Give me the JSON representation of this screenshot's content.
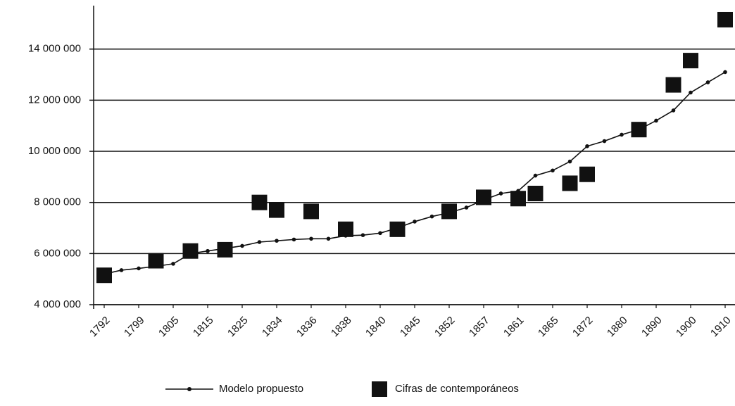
{
  "chart_data": {
    "type": "line",
    "categories": [
      "1792",
      null,
      "1799",
      null,
      "1805",
      null,
      "1815",
      null,
      "1825",
      null,
      "1834",
      null,
      "1836",
      null,
      "1838",
      null,
      "1840",
      null,
      "1845",
      null,
      "1852",
      null,
      "1857",
      null,
      "1861",
      null,
      "1865",
      null,
      "1872",
      null,
      "1880",
      null,
      "1890",
      null,
      "1900",
      null,
      "1910"
    ],
    "series": [
      {
        "name": "Modelo propuesto",
        "color": "#111111",
        "marker": "circle",
        "values": [
          5200000,
          5350000,
          5420000,
          5500000,
          5600000,
          6000000,
          6100000,
          6200000,
          6300000,
          6450000,
          6500000,
          6550000,
          6580000,
          6580000,
          6700000,
          6720000,
          6800000,
          7000000,
          7250000,
          7450000,
          7600000,
          7800000,
          8100000,
          8350000,
          8450000,
          9050000,
          9250000,
          9600000,
          10200000,
          10400000,
          10650000,
          10850000,
          11200000,
          11600000,
          12300000,
          12700000,
          13100000
        ]
      },
      {
        "name": "Cifras de contemporáneos",
        "color": "#111111",
        "marker": "square",
        "values": [
          5150000,
          null,
          null,
          5720000,
          null,
          6100000,
          null,
          6150000,
          null,
          8000000,
          7700000,
          null,
          7650000,
          null,
          6950000,
          null,
          null,
          6950000,
          null,
          null,
          7650000,
          null,
          8200000,
          null,
          8150000,
          8350000,
          null,
          8750000,
          9100000,
          null,
          null,
          10850000,
          null,
          12600000,
          13550000,
          null,
          15150000
        ]
      }
    ],
    "ylim": [
      4000000,
      15700000
    ],
    "yticks": [
      {
        "value": 4000000,
        "label": "4 000 000"
      },
      {
        "value": 6000000,
        "label": "6 000 000"
      },
      {
        "value": 8000000,
        "label": "8 000 000"
      },
      {
        "value": 10000000,
        "label": "10 000 000"
      },
      {
        "value": 12000000,
        "label": "12 000 000"
      },
      {
        "value": 14000000,
        "label": "14 000 000"
      }
    ],
    "grid": true,
    "legend": "bottom"
  }
}
